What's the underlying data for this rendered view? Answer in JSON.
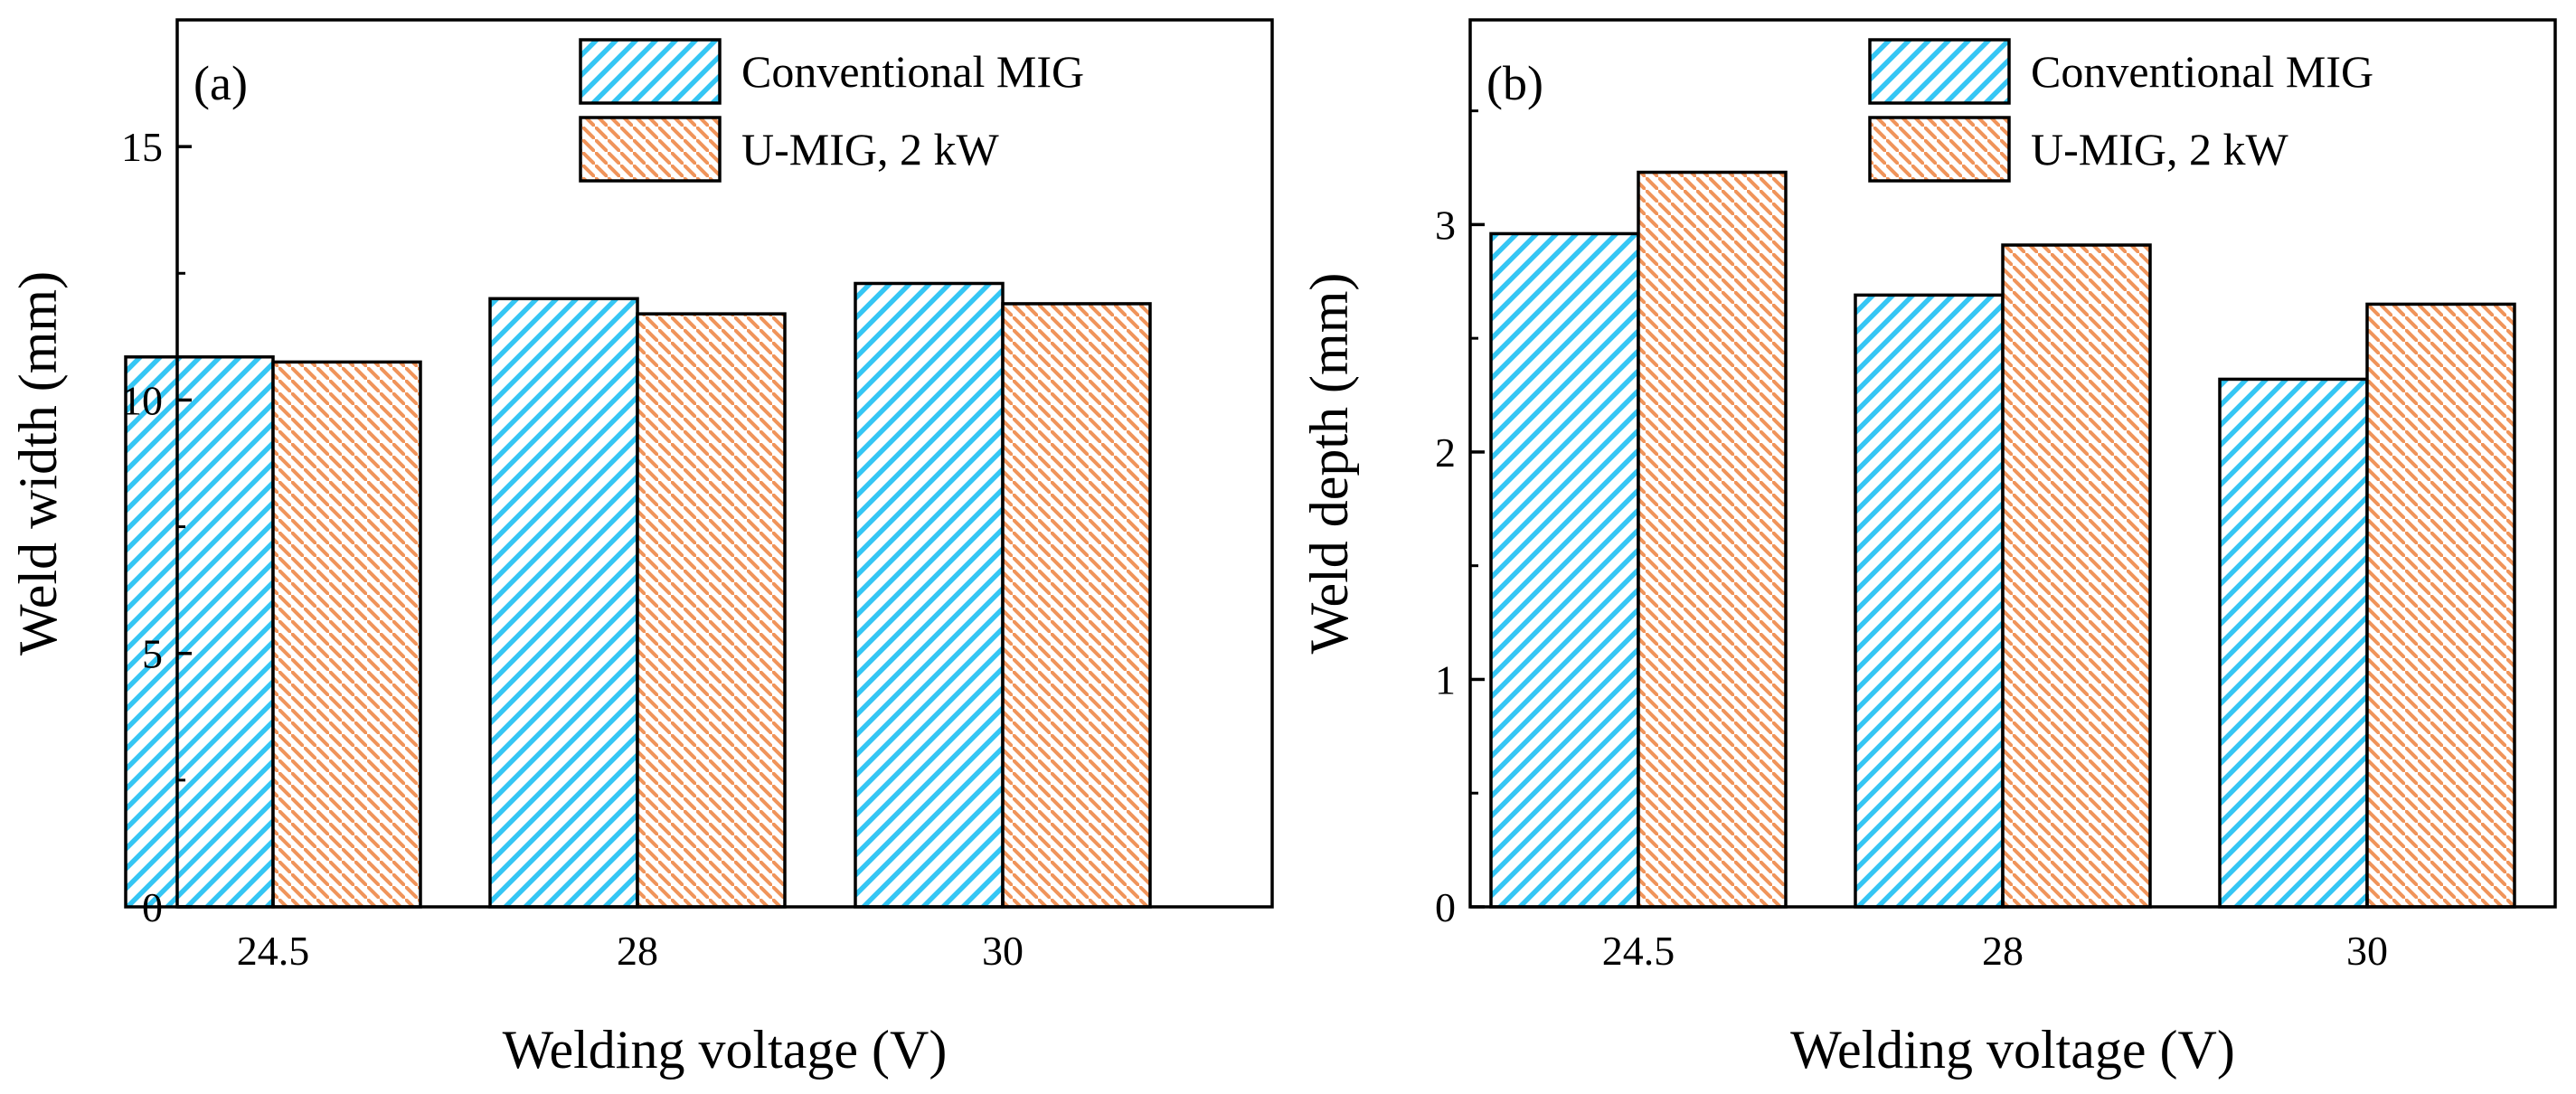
{
  "chart_data": [
    {
      "panel_label": "(a)",
      "type": "bar",
      "categories": [
        "24.5",
        "28",
        "30"
      ],
      "series": [
        {
          "name": "Conventional MIG",
          "values": [
            10.85,
            12.0,
            12.3
          ],
          "color": "#35c6f4",
          "pattern": "diagonal-hatch"
        },
        {
          "name": "U-MIG, 2 kW",
          "values": [
            10.75,
            11.7,
            11.9
          ],
          "color": "#f0945a",
          "pattern": "diagonal-hatch-reverse"
        }
      ],
      "xlabel": "Welding voltage (V)",
      "ylabel": "Weld width (mm)",
      "ylim": [
        0,
        17.5
      ],
      "yticks": [
        0,
        5,
        10,
        15
      ],
      "legend": "top-right",
      "grid": false
    },
    {
      "panel_label": "(b)",
      "type": "bar",
      "categories": [
        "24.5",
        "28",
        "30"
      ],
      "series": [
        {
          "name": "Conventional MIG",
          "values": [
            2.96,
            2.69,
            2.32
          ],
          "color": "#35c6f4",
          "pattern": "diagonal-hatch"
        },
        {
          "name": "U-MIG, 2 kW",
          "values": [
            3.23,
            2.91,
            2.65
          ],
          "color": "#f0945a",
          "pattern": "diagonal-hatch-reverse"
        }
      ],
      "xlabel": "Welding voltage (V)",
      "ylabel": "Weld depth (mm)",
      "ylim": [
        0,
        3.9
      ],
      "yticks": [
        0,
        1,
        2,
        3
      ],
      "legend": "top-right",
      "grid": false
    }
  ]
}
